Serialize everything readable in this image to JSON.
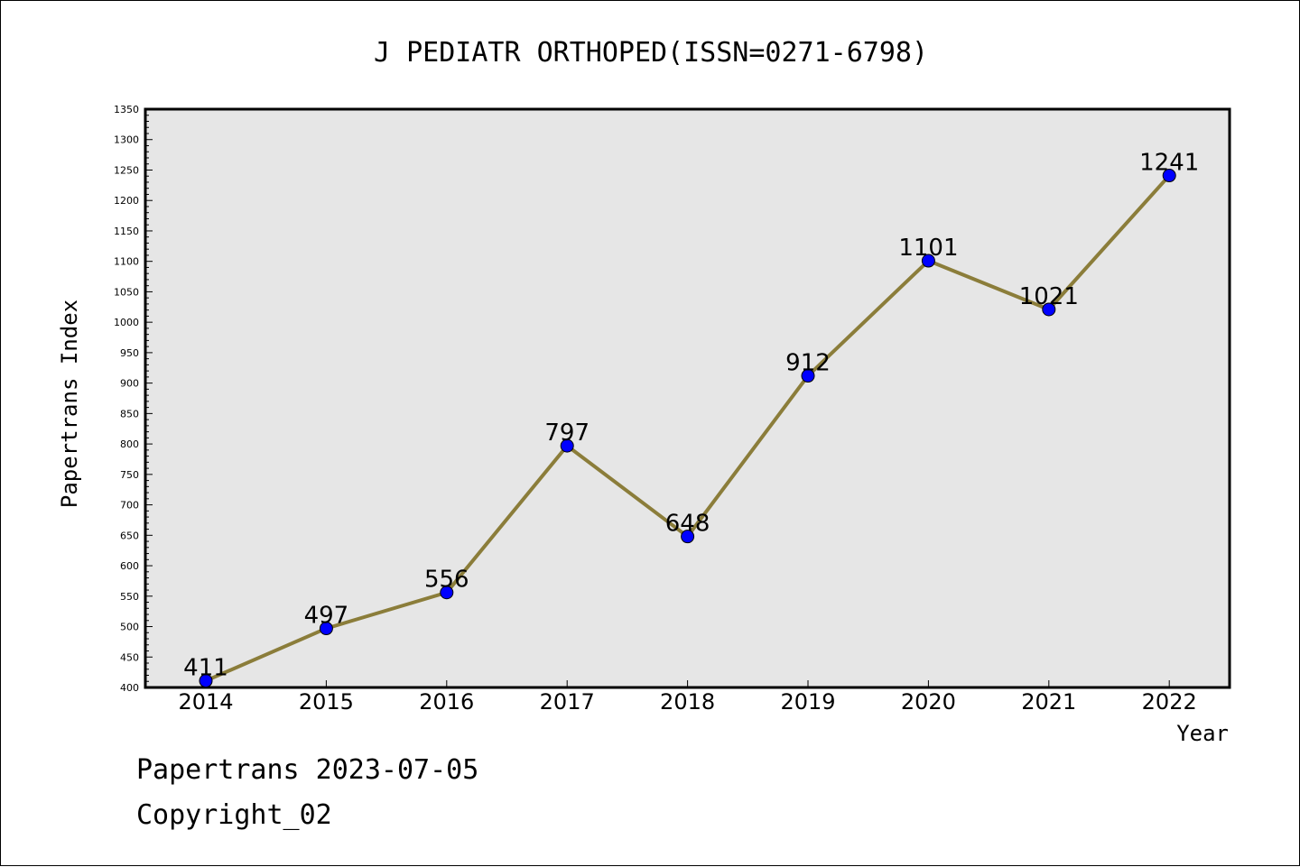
{
  "chart_data": {
    "type": "line",
    "title": "J PEDIATR ORTHOPED(ISSN=0271-6798)",
    "xlabel": "Year",
    "ylabel": "Papertrans Index",
    "categories": [
      "2014",
      "2015",
      "2016",
      "2017",
      "2018",
      "2019",
      "2020",
      "2021",
      "2022"
    ],
    "series": [
      {
        "values": [
          411,
          497,
          556,
          797,
          648,
          912,
          1101,
          1021,
          1241
        ]
      }
    ],
    "data_labels": [
      "411",
      "497",
      "556",
      "797",
      "648",
      "912",
      "1101",
      "1021",
      "1241"
    ],
    "ylim": [
      400,
      1350
    ],
    "yticks": [
      "400",
      "450",
      "500",
      "550",
      "600",
      "650",
      "700",
      "750",
      "800",
      "850",
      "900",
      "950",
      "1000",
      "1050",
      "1100",
      "1150",
      "1200",
      "1250",
      "1300",
      "1350"
    ],
    "grid": false,
    "legend": "none",
    "colors": {
      "line": "#8B7D3A",
      "marker": "#0000FF",
      "plot_background": "#E6E6E6"
    }
  },
  "footer": {
    "line1": "Papertrans 2023-07-05",
    "line2": "Copyright_02"
  }
}
